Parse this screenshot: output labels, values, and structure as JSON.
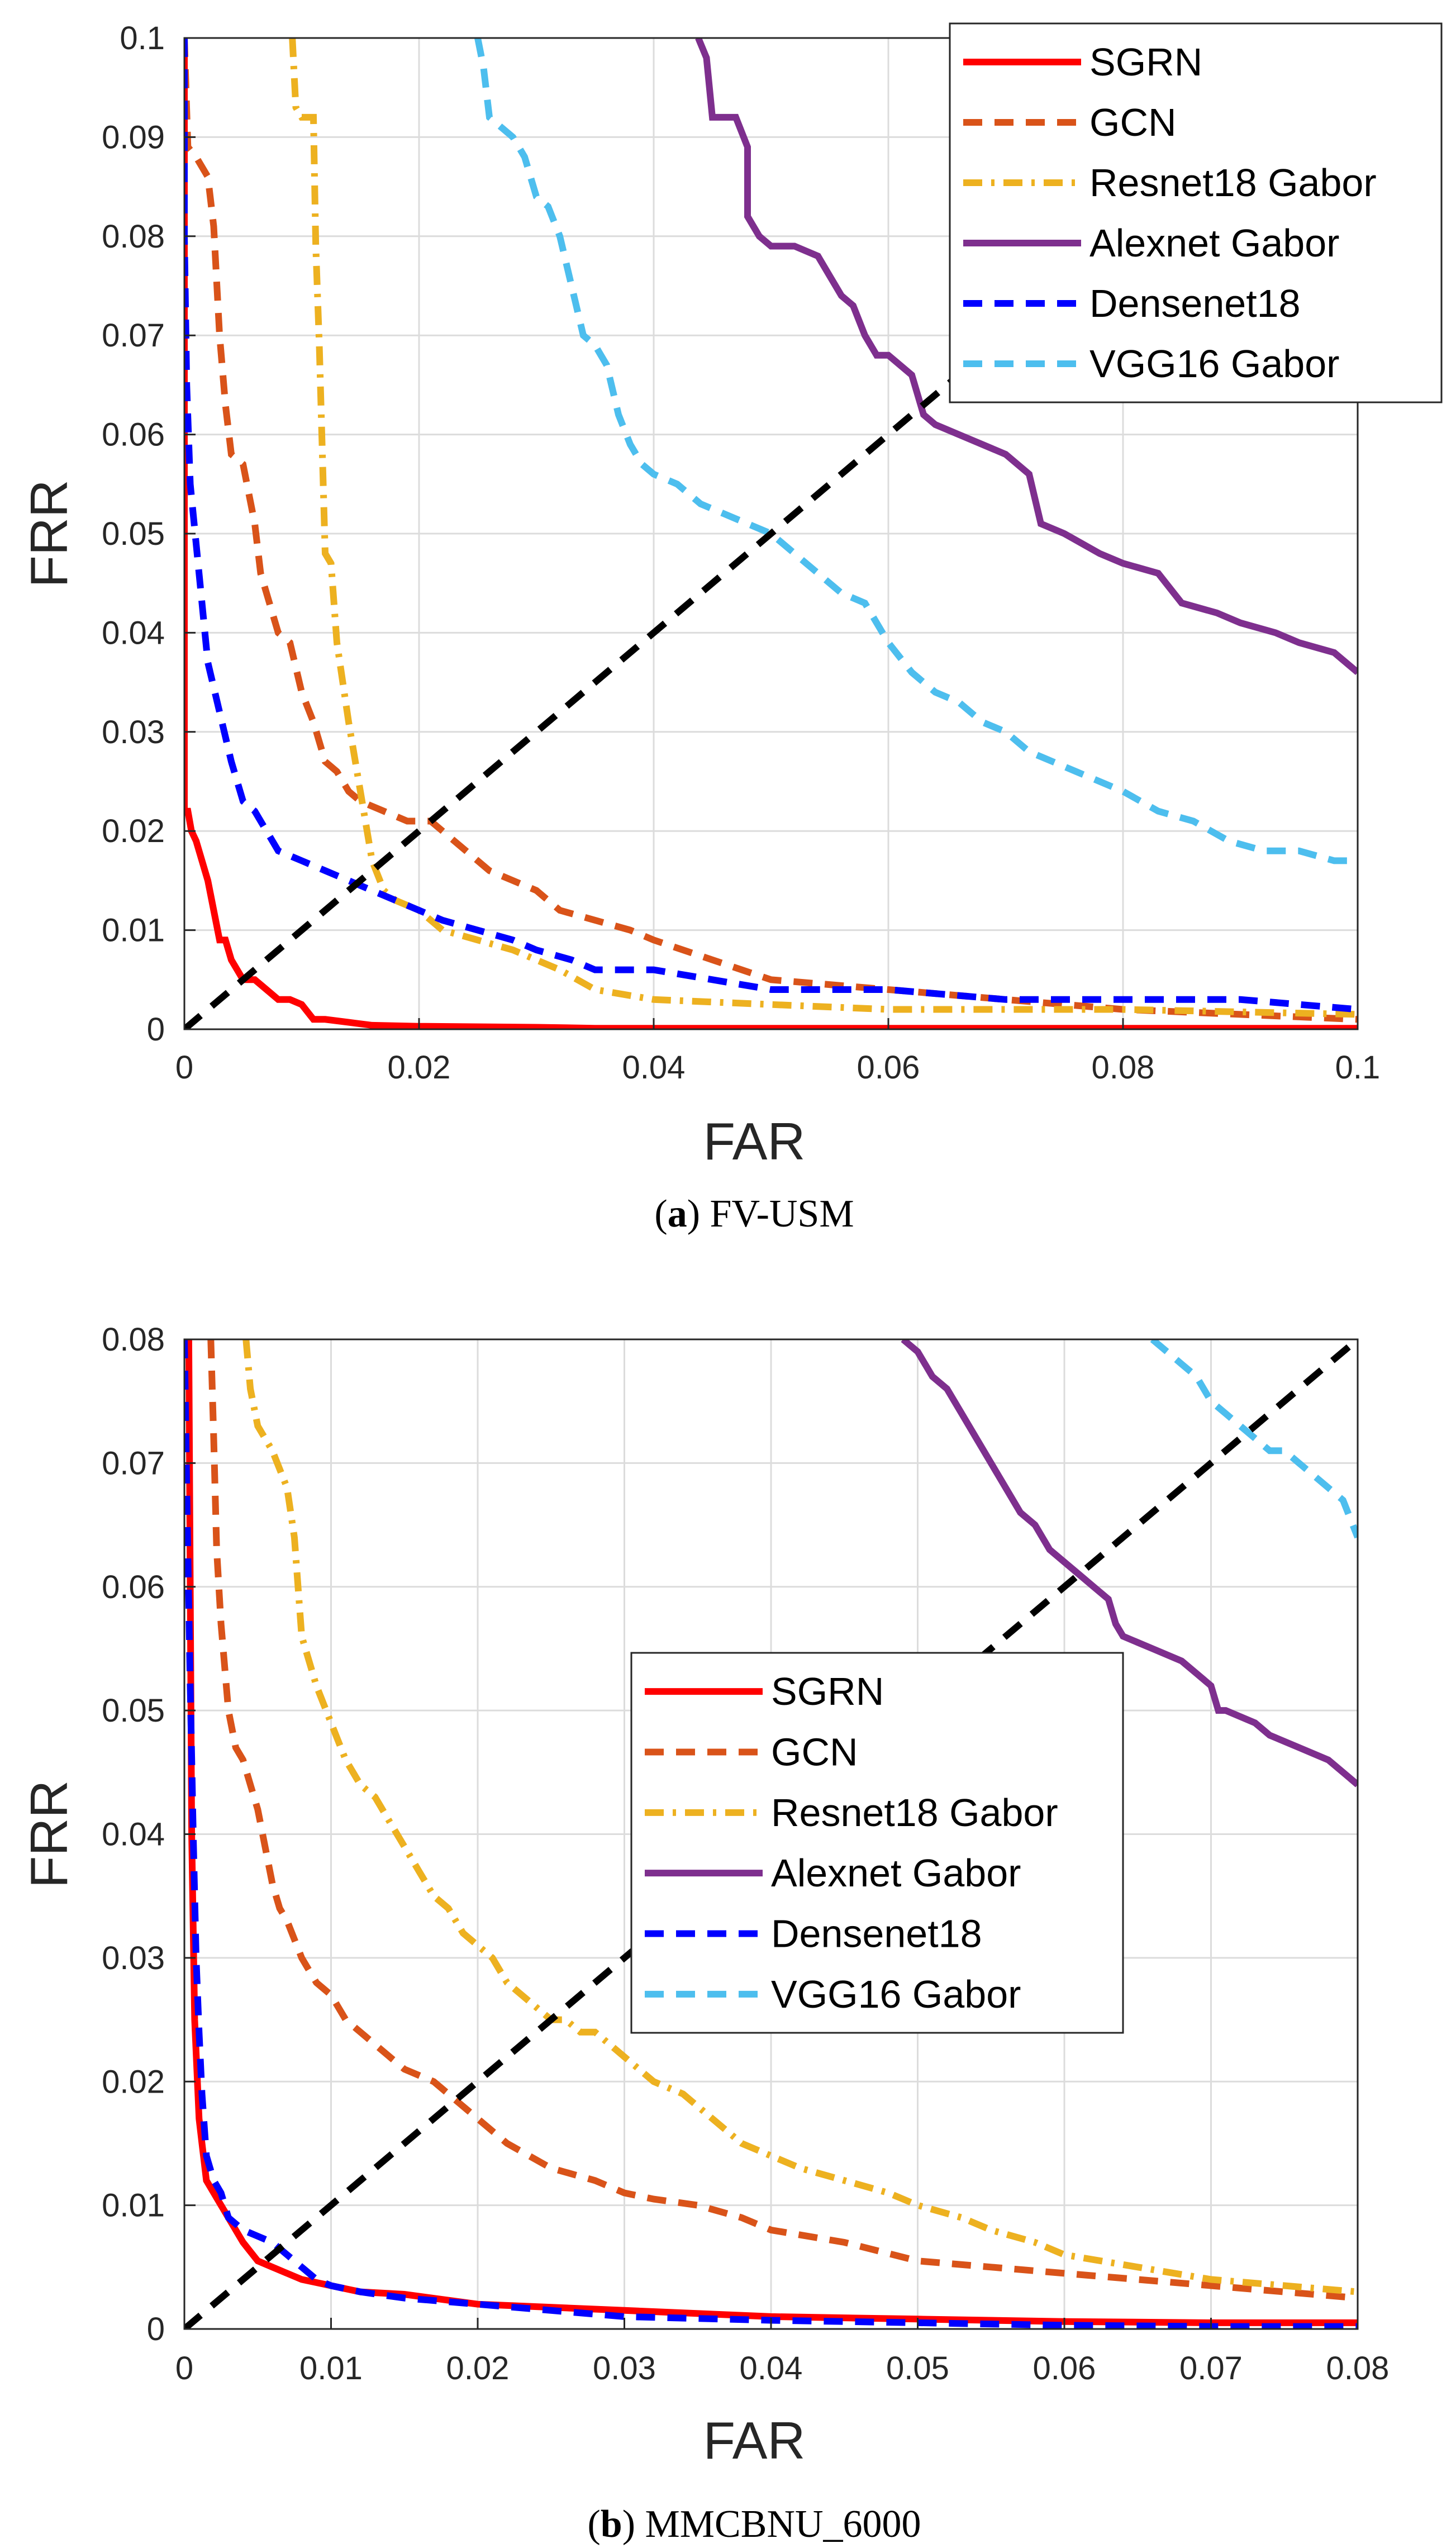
{
  "chart_data": [
    {
      "type": "line",
      "title": "",
      "caption_letter": "a",
      "caption_text": "FV-USM",
      "xlabel": "FAR",
      "ylabel": "FRR",
      "xlim": [
        0,
        0.1
      ],
      "ylim": [
        0,
        0.1
      ],
      "xticks": [
        0,
        0.02,
        0.04,
        0.06,
        0.08,
        0.1
      ],
      "yticks": [
        0,
        0.01,
        0.02,
        0.03,
        0.04,
        0.05,
        0.06,
        0.07,
        0.08,
        0.09,
        0.1
      ],
      "xtick_labels": [
        "0",
        "0.02",
        "0.04",
        "0.06",
        "0.08",
        "0.1"
      ],
      "ytick_labels": [
        "0",
        "0.01",
        "0.02",
        "0.03",
        "0.04",
        "0.05",
        "0.06",
        "0.07",
        "0.08",
        "0.09",
        "0.1"
      ],
      "grid": true,
      "legend_position": "top-right",
      "eer_line": {
        "x": [
          0,
          0.1
        ],
        "y": [
          0,
          0.1
        ],
        "color": "#000000",
        "style": "dashed"
      },
      "series": [
        {
          "name": "SGRN",
          "color": "#ff0000",
          "style": "solid",
          "x": [
            0,
            0,
            0.0003,
            0.0006,
            0.001,
            0.0015,
            0.002,
            0.0025,
            0.003,
            0.0035,
            0.004,
            0.005,
            0.006,
            0.007,
            0.008,
            0.009,
            0.01,
            0.011,
            0.012,
            0.014,
            0.016,
            0.02,
            0.03,
            0.035,
            0.05,
            0.1
          ],
          "y": [
            0.1,
            0.022,
            0.022,
            0.02,
            0.019,
            0.017,
            0.015,
            0.012,
            0.009,
            0.009,
            0.007,
            0.005,
            0.005,
            0.004,
            0.003,
            0.003,
            0.0025,
            0.001,
            0.001,
            0.0007,
            0.0004,
            0.0003,
            0.0002,
            0.0001,
            0.0001,
            0.0001
          ]
        },
        {
          "name": "GCN",
          "color": "#d95319",
          "style": "dashed",
          "x": [
            0,
            0.0003,
            0.001,
            0.002,
            0.0025,
            0.003,
            0.0035,
            0.004,
            0.005,
            0.006,
            0.0065,
            0.008,
            0.009,
            0.01,
            0.011,
            0.012,
            0.013,
            0.014,
            0.015,
            0.017,
            0.019,
            0.021,
            0.022,
            0.024,
            0.026,
            0.028,
            0.03,
            0.032,
            0.035,
            0.038,
            0.04,
            0.045,
            0.05,
            0.06,
            0.07,
            0.08,
            0.09,
            0.1
          ],
          "y": [
            0.1,
            0.089,
            0.088,
            0.086,
            0.081,
            0.07,
            0.063,
            0.058,
            0.057,
            0.051,
            0.046,
            0.04,
            0.039,
            0.034,
            0.031,
            0.027,
            0.026,
            0.024,
            0.023,
            0.022,
            0.021,
            0.021,
            0.02,
            0.018,
            0.016,
            0.015,
            0.014,
            0.012,
            0.011,
            0.01,
            0.009,
            0.007,
            0.005,
            0.004,
            0.003,
            0.002,
            0.0015,
            0.001
          ]
        },
        {
          "name": "Resnet18 Gabor",
          "color": "#edb120",
          "style": "dashdot",
          "x": [
            0.0092,
            0.0095,
            0.01,
            0.011,
            0.0112,
            0.0115,
            0.012,
            0.0125,
            0.013,
            0.014,
            0.015,
            0.016,
            0.017,
            0.018,
            0.02,
            0.022,
            0.025,
            0.028,
            0.032,
            0.035,
            0.04,
            0.05,
            0.06,
            0.08,
            0.1
          ],
          "y": [
            0.1,
            0.093,
            0.092,
            0.092,
            0.079,
            0.069,
            0.048,
            0.047,
            0.039,
            0.031,
            0.024,
            0.017,
            0.014,
            0.013,
            0.012,
            0.01,
            0.009,
            0.008,
            0.006,
            0.004,
            0.003,
            0.0025,
            0.002,
            0.002,
            0.0015
          ]
        },
        {
          "name": "Alexnet Gabor",
          "color": "#7e2f8e",
          "style": "solid",
          "x": [
            0.0438,
            0.0445,
            0.045,
            0.047,
            0.048,
            0.048,
            0.049,
            0.05,
            0.052,
            0.054,
            0.055,
            0.056,
            0.057,
            0.058,
            0.059,
            0.06,
            0.062,
            0.063,
            0.064,
            0.066,
            0.068,
            0.07,
            0.072,
            0.073,
            0.075,
            0.078,
            0.08,
            0.083,
            0.085,
            0.088,
            0.09,
            0.093,
            0.095,
            0.098,
            0.1
          ],
          "y": [
            0.1,
            0.098,
            0.092,
            0.092,
            0.089,
            0.082,
            0.08,
            0.079,
            0.079,
            0.078,
            0.076,
            0.074,
            0.073,
            0.07,
            0.068,
            0.068,
            0.066,
            0.062,
            0.061,
            0.06,
            0.059,
            0.058,
            0.056,
            0.051,
            0.05,
            0.048,
            0.047,
            0.046,
            0.043,
            0.042,
            0.041,
            0.04,
            0.039,
            0.038,
            0.036
          ]
        },
        {
          "name": "Densenet18",
          "color": "#0000ff",
          "style": "dashed",
          "x": [
            0,
            0,
            0.0002,
            0.0005,
            0.001,
            0.0015,
            0.002,
            0.003,
            0.004,
            0.005,
            0.006,
            0.007,
            0.008,
            0.01,
            0.012,
            0.014,
            0.016,
            0.018,
            0.02,
            0.022,
            0.025,
            0.028,
            0.03,
            0.033,
            0.035,
            0.04,
            0.05,
            0.06,
            0.07,
            0.08,
            0.09,
            0.1
          ],
          "y": [
            0.1,
            0.08,
            0.065,
            0.055,
            0.049,
            0.043,
            0.037,
            0.032,
            0.027,
            0.023,
            0.022,
            0.02,
            0.018,
            0.017,
            0.016,
            0.015,
            0.014,
            0.013,
            0.012,
            0.011,
            0.01,
            0.009,
            0.008,
            0.007,
            0.006,
            0.006,
            0.004,
            0.004,
            0.003,
            0.003,
            0.003,
            0.002
          ]
        },
        {
          "name": "VGG16 Gabor",
          "color": "#4dbeee",
          "style": "dashed",
          "x": [
            0.025,
            0.0255,
            0.026,
            0.027,
            0.028,
            0.029,
            0.03,
            0.031,
            0.032,
            0.033,
            0.034,
            0.035,
            0.036,
            0.037,
            0.038,
            0.039,
            0.04,
            0.042,
            0.044,
            0.046,
            0.048,
            0.05,
            0.052,
            0.054,
            0.056,
            0.058,
            0.06,
            0.062,
            0.064,
            0.066,
            0.068,
            0.07,
            0.072,
            0.074,
            0.076,
            0.078,
            0.08,
            0.083,
            0.086,
            0.089,
            0.092,
            0.095,
            0.098,
            0.1
          ],
          "y": [
            0.1,
            0.097,
            0.092,
            0.091,
            0.09,
            0.088,
            0.084,
            0.083,
            0.08,
            0.075,
            0.07,
            0.069,
            0.067,
            0.062,
            0.059,
            0.057,
            0.056,
            0.055,
            0.053,
            0.052,
            0.051,
            0.05,
            0.048,
            0.046,
            0.044,
            0.043,
            0.039,
            0.036,
            0.034,
            0.033,
            0.031,
            0.03,
            0.028,
            0.027,
            0.026,
            0.025,
            0.024,
            0.022,
            0.021,
            0.019,
            0.018,
            0.018,
            0.017,
            0.017
          ]
        }
      ]
    },
    {
      "type": "line",
      "title": "",
      "caption_letter": "b",
      "caption_text": "MMCBNU_6000",
      "xlabel": "FAR",
      "ylabel": "FRR",
      "xlim": [
        0,
        0.08
      ],
      "ylim": [
        0,
        0.08
      ],
      "xticks": [
        0,
        0.01,
        0.02,
        0.03,
        0.04,
        0.05,
        0.06,
        0.07,
        0.08
      ],
      "yticks": [
        0,
        0.01,
        0.02,
        0.03,
        0.04,
        0.05,
        0.06,
        0.07,
        0.08
      ],
      "xtick_labels": [
        "0",
        "0.01",
        "0.02",
        "0.03",
        "0.04",
        "0.05",
        "0.06",
        "0.07",
        "0.08"
      ],
      "ytick_labels": [
        "0",
        "0.01",
        "0.02",
        "0.03",
        "0.04",
        "0.05",
        "0.06",
        "0.07",
        "0.08"
      ],
      "grid": true,
      "legend_position": "center",
      "eer_line": {
        "x": [
          0,
          0.08
        ],
        "y": [
          0,
          0.08
        ],
        "color": "#000000",
        "style": "dashed"
      },
      "series": [
        {
          "name": "SGRN",
          "color": "#ff0000",
          "style": "solid",
          "x": [
            0.0003,
            0.0004,
            0.0005,
            0.0007,
            0.001,
            0.0012,
            0.0015,
            0.002,
            0.003,
            0.004,
            0.005,
            0.006,
            0.007,
            0.008,
            0.01,
            0.012,
            0.015,
            0.02,
            0.03,
            0.04,
            0.05,
            0.06,
            0.07,
            0.08
          ],
          "y": [
            0.08,
            0.06,
            0.04,
            0.025,
            0.017,
            0.015,
            0.012,
            0.011,
            0.009,
            0.007,
            0.0055,
            0.005,
            0.0045,
            0.004,
            0.0035,
            0.003,
            0.0028,
            0.002,
            0.0015,
            0.001,
            0.0008,
            0.0006,
            0.0005,
            0.0005
          ]
        },
        {
          "name": "GCN",
          "color": "#d95319",
          "style": "dashed",
          "x": [
            0.0018,
            0.002,
            0.0022,
            0.0025,
            0.003,
            0.0035,
            0.004,
            0.0045,
            0.005,
            0.006,
            0.0065,
            0.007,
            0.008,
            0.009,
            0.01,
            0.011,
            0.012,
            0.013,
            0.014,
            0.015,
            0.016,
            0.017,
            0.018,
            0.02,
            0.022,
            0.025,
            0.028,
            0.03,
            0.032,
            0.035,
            0.038,
            0.04,
            0.045,
            0.05,
            0.055,
            0.06,
            0.065,
            0.07,
            0.075,
            0.08
          ],
          "y": [
            0.08,
            0.072,
            0.063,
            0.057,
            0.05,
            0.047,
            0.046,
            0.044,
            0.042,
            0.036,
            0.034,
            0.033,
            0.03,
            0.028,
            0.027,
            0.025,
            0.024,
            0.023,
            0.022,
            0.021,
            0.0205,
            0.02,
            0.019,
            0.017,
            0.015,
            0.013,
            0.012,
            0.011,
            0.0105,
            0.01,
            0.009,
            0.008,
            0.007,
            0.0055,
            0.005,
            0.0045,
            0.004,
            0.0035,
            0.003,
            0.0025
          ]
        },
        {
          "name": "Resnet18 Gabor",
          "color": "#edb120",
          "style": "dashdot",
          "x": [
            0.0042,
            0.0045,
            0.005,
            0.0055,
            0.006,
            0.007,
            0.0075,
            0.008,
            0.009,
            0.01,
            0.011,
            0.012,
            0.013,
            0.014,
            0.015,
            0.016,
            0.017,
            0.018,
            0.019,
            0.02,
            0.021,
            0.022,
            0.023,
            0.024,
            0.025,
            0.026,
            0.027,
            0.028,
            0.029,
            0.03,
            0.032,
            0.034,
            0.036,
            0.038,
            0.04,
            0.042,
            0.045,
            0.048,
            0.05,
            0.053,
            0.055,
            0.058,
            0.06,
            0.065,
            0.07,
            0.075,
            0.08
          ],
          "y": [
            0.08,
            0.076,
            0.073,
            0.072,
            0.071,
            0.068,
            0.064,
            0.056,
            0.052,
            0.049,
            0.046,
            0.044,
            0.043,
            0.041,
            0.039,
            0.037,
            0.035,
            0.034,
            0.032,
            0.031,
            0.03,
            0.028,
            0.027,
            0.026,
            0.025,
            0.025,
            0.024,
            0.024,
            0.023,
            0.022,
            0.02,
            0.019,
            0.017,
            0.015,
            0.014,
            0.013,
            0.012,
            0.011,
            0.01,
            0.009,
            0.008,
            0.007,
            0.006,
            0.005,
            0.004,
            0.0035,
            0.003
          ]
        },
        {
          "name": "Alexnet Gabor",
          "color": "#7e2f8e",
          "style": "solid",
          "x": [
            0.049,
            0.05,
            0.051,
            0.052,
            0.053,
            0.054,
            0.055,
            0.056,
            0.057,
            0.058,
            0.059,
            0.06,
            0.061,
            0.062,
            0.063,
            0.0635,
            0.064,
            0.066,
            0.068,
            0.069,
            0.07,
            0.0705,
            0.071,
            0.073,
            0.074,
            0.076,
            0.078,
            0.079,
            0.08
          ],
          "y": [
            0.08,
            0.079,
            0.077,
            0.076,
            0.074,
            0.072,
            0.07,
            0.068,
            0.066,
            0.065,
            0.063,
            0.062,
            0.061,
            0.06,
            0.059,
            0.057,
            0.056,
            0.055,
            0.054,
            0.053,
            0.052,
            0.05,
            0.05,
            0.049,
            0.048,
            0.047,
            0.046,
            0.045,
            0.044
          ]
        },
        {
          "name": "Densenet18",
          "color": "#0000ff",
          "style": "dashed",
          "x": [
            0,
            0.0002,
            0.0004,
            0.0006,
            0.0008,
            0.001,
            0.0012,
            0.0015,
            0.002,
            0.0025,
            0.003,
            0.004,
            0.005,
            0.006,
            0.007,
            0.008,
            0.009,
            0.01,
            0.012,
            0.015,
            0.02,
            0.025,
            0.03,
            0.04,
            0.05,
            0.06,
            0.07,
            0.08
          ],
          "y": [
            0.08,
            0.065,
            0.052,
            0.04,
            0.03,
            0.024,
            0.019,
            0.014,
            0.012,
            0.011,
            0.009,
            0.008,
            0.0075,
            0.007,
            0.006,
            0.005,
            0.004,
            0.0035,
            0.003,
            0.0025,
            0.002,
            0.0015,
            0.001,
            0.0007,
            0.0005,
            0.0003,
            0.0002,
            0.0002
          ]
        },
        {
          "name": "VGG16 Gabor",
          "color": "#4dbeee",
          "style": "dashed",
          "x": [
            0.066,
            0.067,
            0.068,
            0.069,
            0.07,
            0.071,
            0.072,
            0.073,
            0.074,
            0.075,
            0.076,
            0.077,
            0.078,
            0.079,
            0.08
          ],
          "y": [
            0.08,
            0.079,
            0.078,
            0.077,
            0.075,
            0.074,
            0.073,
            0.072,
            0.071,
            0.071,
            0.07,
            0.069,
            0.068,
            0.067,
            0.064
          ]
        }
      ]
    }
  ]
}
